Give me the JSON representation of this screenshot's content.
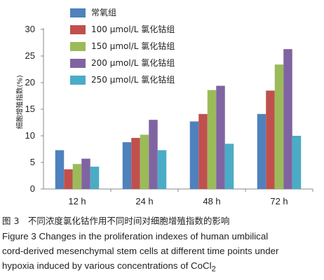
{
  "chart_data": {
    "type": "bar",
    "categories": [
      "12 h",
      "24 h",
      "48 h",
      "72 h"
    ],
    "series": [
      {
        "name": "常氧组",
        "color": "#4f81bd",
        "values": [
          7.3,
          8.8,
          12.7,
          14.1
        ]
      },
      {
        "name": "100 μmol/L 氯化钴组",
        "color": "#c0504d",
        "values": [
          3.7,
          9.6,
          14.1,
          18.5
        ]
      },
      {
        "name": "150 μmol/L 氯化钴组",
        "color": "#9bbb59",
        "values": [
          4.7,
          10.2,
          18.6,
          23.4
        ]
      },
      {
        "name": "200 μmol/L 氯化钴组",
        "color": "#8064a2",
        "values": [
          5.7,
          13.0,
          19.4,
          26.3
        ]
      },
      {
        "name": "250 μmol/L 氯化钴组",
        "color": "#4bacc6",
        "values": [
          4.2,
          7.3,
          8.5,
          10.0
        ]
      }
    ],
    "ylabel": "细胞增殖指数(%)",
    "xlabel": "",
    "ylim": [
      0,
      30
    ],
    "yticks": [
      0,
      5,
      10,
      15,
      20,
      25,
      30
    ],
    "grid": false,
    "legend": "top-center"
  },
  "caption": {
    "cn": "图 3　不同浓度氯化钴作用不同时间对细胞增殖指数的影响",
    "en_line1": "Figure 3   Changes in the proliferation indexes of human umbilical",
    "en_line2": "cord-derived mesenchymal stem cells at different time points under",
    "en_line3_text": "hypoxia induced by various concentrations of CoCl",
    "en_line3_sub": "2"
  }
}
